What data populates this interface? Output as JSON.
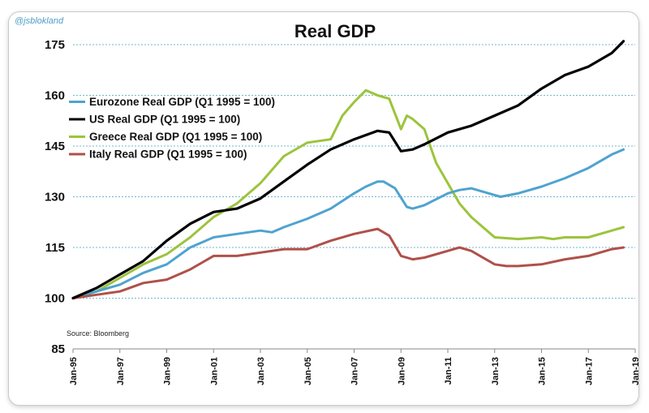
{
  "handle": "@jsblokland",
  "chart_data": {
    "type": "line",
    "title": "Real GDP",
    "source": "Source: Bloomberg",
    "xlabel": "",
    "ylabel": "",
    "ylim": [
      85,
      175
    ],
    "yticks": [
      85,
      100,
      115,
      130,
      145,
      160,
      175
    ],
    "grid": "horizontal dashed",
    "legend_position": "upper-left",
    "xlim": [
      "Jan-95",
      "Jan-19"
    ],
    "xticks": [
      "Jan-95",
      "Jan-97",
      "Jan-99",
      "Jan-01",
      "Jan-03",
      "Jan-05",
      "Jan-07",
      "Jan-09",
      "Jan-11",
      "Jan-13",
      "Jan-15",
      "Jan-17",
      "Jan-19"
    ],
    "series": [
      {
        "name": "Eurozone Real GDP (Q1 1995 = 100)",
        "color": "#4fa3cf",
        "x": [
          1995.0,
          1996.0,
          1997.0,
          1998.0,
          1999.0,
          2000.0,
          2001.0,
          2002.0,
          2003.0,
          2003.5,
          2004.0,
          2005.0,
          2006.0,
          2007.0,
          2007.5,
          2008.0,
          2008.25,
          2008.75,
          2009.25,
          2009.5,
          2010.0,
          2011.0,
          2011.5,
          2012.0,
          2013.0,
          2013.25,
          2014.0,
          2015.0,
          2016.0,
          2017.0,
          2018.0,
          2018.5
        ],
        "y": [
          100,
          102,
          104,
          107.5,
          110,
          115,
          118,
          119,
          120,
          119.5,
          121,
          123.5,
          126.5,
          131,
          133,
          134.5,
          134.5,
          132.5,
          127,
          126.5,
          127.5,
          131,
          132,
          132.5,
          130.5,
          130,
          131,
          133,
          135.5,
          138.5,
          142.5,
          144
        ]
      },
      {
        "name": "US Real GDP (Q1 1995 = 100)",
        "color": "#000000",
        "x": [
          1995.0,
          1996.0,
          1997.0,
          1998.0,
          1999.0,
          2000.0,
          2001.0,
          2002.0,
          2003.0,
          2004.0,
          2005.0,
          2006.0,
          2007.0,
          2008.0,
          2008.5,
          2009.0,
          2009.5,
          2010.0,
          2011.0,
          2012.0,
          2013.0,
          2014.0,
          2015.0,
          2016.0,
          2017.0,
          2018.0,
          2018.5
        ],
        "y": [
          100,
          103,
          107,
          111,
          117,
          122,
          125.5,
          126.5,
          129.5,
          134.5,
          139.5,
          144,
          147,
          149.5,
          149,
          143.5,
          144,
          145.5,
          149,
          151,
          154,
          157,
          162,
          166,
          168.5,
          172.5,
          176
        ]
      },
      {
        "name": "Greece Real GDP (Q1 1995 = 100)",
        "color": "#9cc43c",
        "x": [
          1995.0,
          1996.0,
          1997.0,
          1998.0,
          1999.0,
          2000.0,
          2001.0,
          2002.0,
          2003.0,
          2004.0,
          2005.0,
          2006.0,
          2006.5,
          2007.0,
          2007.5,
          2008.0,
          2008.5,
          2009.0,
          2009.25,
          2009.5,
          2010.0,
          2010.5,
          2011.0,
          2011.5,
          2012.0,
          2012.5,
          2013.0,
          2014.0,
          2015.0,
          2015.5,
          2016.0,
          2017.0,
          2018.0,
          2018.5
        ],
        "y": [
          100,
          102,
          106,
          110,
          113,
          118,
          124,
          128,
          134,
          142,
          146,
          147,
          154,
          158,
          161.5,
          160,
          159,
          150,
          154,
          153,
          150,
          140,
          134,
          128,
          124,
          121,
          118,
          117.5,
          118,
          117.5,
          118,
          118,
          120,
          121
        ]
      },
      {
        "name": "Italy Real GDP (Q1 1995 = 100)",
        "color": "#b0504a",
        "x": [
          1995.0,
          1996.0,
          1997.0,
          1998.0,
          1999.0,
          2000.0,
          2001.0,
          2002.0,
          2003.0,
          2004.0,
          2005.0,
          2006.0,
          2007.0,
          2008.0,
          2008.5,
          2009.0,
          2009.5,
          2010.0,
          2011.0,
          2011.5,
          2012.0,
          2013.0,
          2013.5,
          2014.0,
          2015.0,
          2016.0,
          2017.0,
          2018.0,
          2018.5
        ],
        "y": [
          100,
          101,
          102,
          104.5,
          105.5,
          108.5,
          112.5,
          112.5,
          113.5,
          114.5,
          114.5,
          117,
          119,
          120.5,
          118.5,
          112.5,
          111.5,
          112,
          114,
          115,
          114,
          110,
          109.5,
          109.5,
          110,
          111.5,
          112.5,
          114.5,
          115
        ]
      }
    ]
  }
}
